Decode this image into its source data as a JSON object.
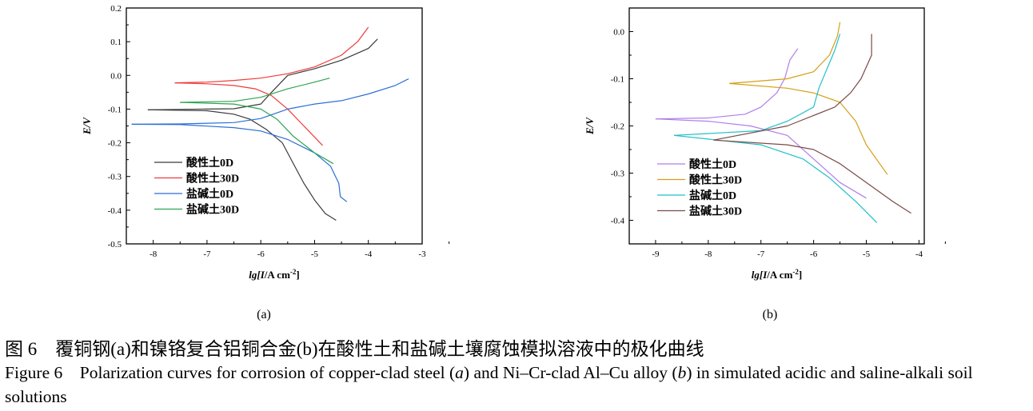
{
  "chart_data": [
    {
      "type": "line",
      "panel_label": "(a)",
      "xlabel_prefix": "lg[",
      "xlabel_var": "I",
      "xlabel_unit": "/A cm",
      "xlabel_sup": "-2",
      "xlabel_suffix": "]",
      "ylabel": "E/V",
      "xlim": [
        -8.5,
        -3
      ],
      "ylim": [
        -0.5,
        0.2
      ],
      "xticks": [
        "-8",
        "-7",
        "-6",
        "-5",
        "-4",
        "-3"
      ],
      "yticks": [
        "0.2",
        "0.1",
        "0.0",
        "-0.1",
        "-0.2",
        "-0.3",
        "-0.4",
        "-0.5"
      ],
      "grid": false,
      "legend_placement": "lower-left",
      "series": [
        {
          "name": "酸性土0D",
          "color": "#3a3a3a",
          "anodic": [
            [
              -8.1,
              -0.102
            ],
            [
              -7,
              -0.1
            ],
            [
              -6.5,
              -0.099
            ],
            [
              -6,
              -0.085
            ],
            [
              -5.8,
              -0.05
            ],
            [
              -5.5,
              0
            ],
            [
              -5,
              0.02
            ],
            [
              -4.5,
              0.045
            ],
            [
              -4,
              0.08
            ],
            [
              -3.83,
              0.108
            ]
          ],
          "cathodic": [
            [
              -8.1,
              -0.102
            ],
            [
              -7,
              -0.105
            ],
            [
              -6.5,
              -0.115
            ],
            [
              -6.2,
              -0.13
            ],
            [
              -5.9,
              -0.16
            ],
            [
              -5.6,
              -0.2
            ],
            [
              -5.4,
              -0.26
            ],
            [
              -5.2,
              -0.32
            ],
            [
              -5,
              -0.37
            ],
            [
              -4.8,
              -0.41
            ],
            [
              -4.6,
              -0.43
            ]
          ]
        },
        {
          "name": "酸性土30D",
          "color": "#ee3b3b",
          "anodic": [
            [
              -7.6,
              -0.022
            ],
            [
              -7,
              -0.02
            ],
            [
              -6.5,
              -0.015
            ],
            [
              -6,
              -0.008
            ],
            [
              -5.5,
              0.005
            ],
            [
              -5,
              0.025
            ],
            [
              -4.5,
              0.06
            ],
            [
              -4.2,
              0.1
            ],
            [
              -4.0,
              0.143
            ]
          ],
          "cathodic": [
            [
              -7.6,
              -0.022
            ],
            [
              -7,
              -0.025
            ],
            [
              -6.5,
              -0.03
            ],
            [
              -6.1,
              -0.04
            ],
            [
              -5.8,
              -0.06
            ],
            [
              -5.5,
              -0.1
            ],
            [
              -5.2,
              -0.15
            ],
            [
              -4.85,
              -0.208
            ]
          ]
        },
        {
          "name": "盐碱土0D",
          "color": "#2a6fd6",
          "anodic": [
            [
              -8.4,
              -0.145
            ],
            [
              -7.5,
              -0.144
            ],
            [
              -6.5,
              -0.14
            ],
            [
              -6,
              -0.128
            ],
            [
              -5.5,
              -0.1
            ],
            [
              -5,
              -0.085
            ],
            [
              -4.5,
              -0.075
            ],
            [
              -4,
              -0.055
            ],
            [
              -3.5,
              -0.03
            ],
            [
              -3.25,
              -0.01
            ]
          ],
          "cathodic": [
            [
              -8.4,
              -0.145
            ],
            [
              -7.5,
              -0.146
            ],
            [
              -6.5,
              -0.155
            ],
            [
              -6,
              -0.165
            ],
            [
              -5.5,
              -0.19
            ],
            [
              -5,
              -0.23
            ],
            [
              -4.7,
              -0.27
            ],
            [
              -4.55,
              -0.32
            ],
            [
              -4.52,
              -0.36
            ],
            [
              -4.4,
              -0.375
            ]
          ]
        },
        {
          "name": "盐碱土30D",
          "color": "#2ea44f",
          "anodic": [
            [
              -7.5,
              -0.08
            ],
            [
              -6.5,
              -0.077
            ],
            [
              -6,
              -0.065
            ],
            [
              -5.5,
              -0.04
            ],
            [
              -5,
              -0.02
            ],
            [
              -4.72,
              -0.008
            ]
          ],
          "cathodic": [
            [
              -7.5,
              -0.08
            ],
            [
              -6.5,
              -0.085
            ],
            [
              -6,
              -0.1
            ],
            [
              -5.7,
              -0.13
            ],
            [
              -5.4,
              -0.18
            ],
            [
              -5,
              -0.23
            ],
            [
              -4.65,
              -0.262
            ]
          ]
        }
      ]
    },
    {
      "type": "line",
      "panel_label": "(b)",
      "xlabel_prefix": "lg[",
      "xlabel_var": "I",
      "xlabel_unit": "/A cm",
      "xlabel_sup": "-2",
      "xlabel_suffix": "]",
      "ylabel": "E/V",
      "xlim": [
        -9.5,
        -3.9
      ],
      "ylim": [
        -0.45,
        0.05
      ],
      "xticks": [
        "-9",
        "-8",
        "-7",
        "-6",
        "-5",
        "-4"
      ],
      "yticks": [
        "0.0",
        "-0.1",
        "-0.2",
        "-0.3",
        "-0.4"
      ],
      "grid": false,
      "legend_placement": "lower-left",
      "series": [
        {
          "name": "酸性土0D",
          "color": "#b07ee8",
          "anodic": [
            [
              -9,
              -0.185
            ],
            [
              -8,
              -0.183
            ],
            [
              -7.3,
              -0.175
            ],
            [
              -7,
              -0.16
            ],
            [
              -6.7,
              -0.13
            ],
            [
              -6.55,
              -0.1
            ],
            [
              -6.45,
              -0.06
            ],
            [
              -6.3,
              -0.036
            ]
          ],
          "cathodic": [
            [
              -9,
              -0.185
            ],
            [
              -8,
              -0.19
            ],
            [
              -7.2,
              -0.2
            ],
            [
              -6.5,
              -0.22
            ],
            [
              -6,
              -0.27
            ],
            [
              -5.5,
              -0.32
            ],
            [
              -5,
              -0.353
            ]
          ]
        },
        {
          "name": "酸性土30D",
          "color": "#d4a017",
          "anodic": [
            [
              -7.6,
              -0.11
            ],
            [
              -6.5,
              -0.1
            ],
            [
              -6,
              -0.085
            ],
            [
              -5.7,
              -0.05
            ],
            [
              -5.55,
              -0.01
            ],
            [
              -5.5,
              0.02
            ]
          ],
          "cathodic": [
            [
              -7.6,
              -0.11
            ],
            [
              -6.5,
              -0.12
            ],
            [
              -6,
              -0.13
            ],
            [
              -5.5,
              -0.15
            ],
            [
              -5.2,
              -0.19
            ],
            [
              -5,
              -0.24
            ],
            [
              -4.6,
              -0.303
            ]
          ]
        },
        {
          "name": "盐碱土0D",
          "color": "#1fc0c8",
          "anodic": [
            [
              -8.65,
              -0.22
            ],
            [
              -7,
              -0.21
            ],
            [
              -6.5,
              -0.19
            ],
            [
              -6,
              -0.16
            ],
            [
              -5.9,
              -0.12
            ],
            [
              -5.75,
              -0.08
            ],
            [
              -5.6,
              -0.04
            ],
            [
              -5.5,
              -0.005
            ]
          ],
          "cathodic": [
            [
              -8.65,
              -0.22
            ],
            [
              -7,
              -0.24
            ],
            [
              -6.2,
              -0.27
            ],
            [
              -5.7,
              -0.31
            ],
            [
              -5.2,
              -0.36
            ],
            [
              -4.8,
              -0.405
            ]
          ]
        },
        {
          "name": "盐碱土30D",
          "color": "#7a4a48",
          "anodic": [
            [
              -7.9,
              -0.23
            ],
            [
              -6.5,
              -0.2
            ],
            [
              -5.6,
              -0.16
            ],
            [
              -5.3,
              -0.13
            ],
            [
              -5.1,
              -0.1
            ],
            [
              -4.9,
              -0.05
            ],
            [
              -4.9,
              -0.005
            ]
          ],
          "cathodic": [
            [
              -7.9,
              -0.23
            ],
            [
              -6.5,
              -0.24
            ],
            [
              -6,
              -0.25
            ],
            [
              -5.5,
              -0.28
            ],
            [
              -5,
              -0.32
            ],
            [
              -4.5,
              -0.36
            ],
            [
              -4.15,
              -0.385
            ]
          ]
        }
      ]
    }
  ],
  "caption": {
    "zh": "图 6　覆铜钢(a)和镍铬复合铝铜合金(b)在酸性土和盐碱土壤腐蚀模拟溶液中的极化曲线",
    "en_label": "Figure 6",
    "en_1": "Polarization curves for corrosion of copper-clad steel (",
    "en_a": "a",
    "en_2": ") and Ni–Cr-clad Al–Cu alloy (",
    "en_b": "b",
    "en_3": ") in simulated acidic and saline-alkali soil solutions"
  }
}
